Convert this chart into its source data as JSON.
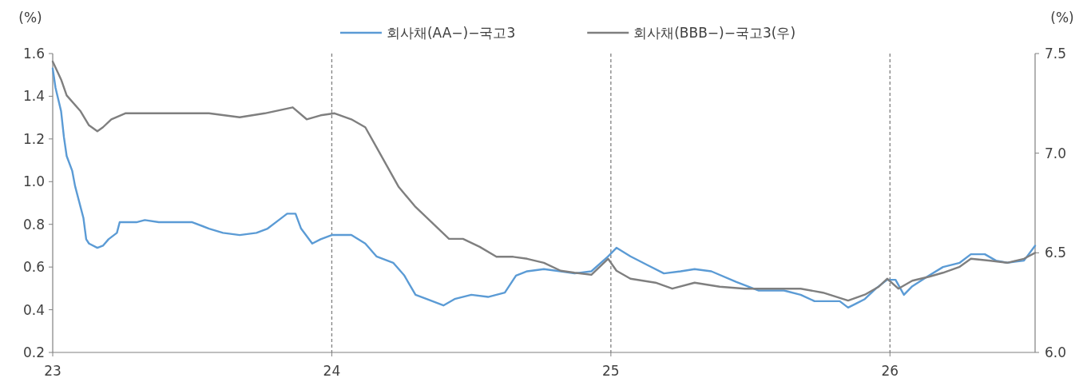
{
  "chart_data": {
    "type": "line",
    "ylabel": "(%)",
    "y2label": "(%)",
    "xlim": [
      2023,
      2026.52
    ],
    "xticks": [
      {
        "value": 2023,
        "label": "23"
      },
      {
        "value": 2024,
        "label": "24"
      },
      {
        "value": 2025,
        "label": "25"
      },
      {
        "value": 2026,
        "label": "26"
      }
    ],
    "ylim": [
      0.2,
      1.6
    ],
    "yticks": [
      {
        "value": 0.2,
        "label": "0.2"
      },
      {
        "value": 0.4,
        "label": "0.4"
      },
      {
        "value": 0.6,
        "label": "0.6"
      },
      {
        "value": 0.8,
        "label": "0.8"
      },
      {
        "value": 1.0,
        "label": "1.0"
      },
      {
        "value": 1.2,
        "label": "1.2"
      },
      {
        "value": 1.4,
        "label": "1.4"
      },
      {
        "value": 1.6,
        "label": "1.6"
      }
    ],
    "y2lim": [
      6.0,
      7.5
    ],
    "y2ticks": [
      {
        "value": 6.0,
        "label": "6.0"
      },
      {
        "value": 6.5,
        "label": "6.5"
      },
      {
        "value": 7.0,
        "label": "7.0"
      },
      {
        "value": 7.5,
        "label": "7.5"
      }
    ],
    "grid": false,
    "legend": "top",
    "marker": "none",
    "line_style": "solid",
    "ref_lines": [
      {
        "axis": "x",
        "value": 2024,
        "color": "#808080",
        "line_style": "dashed"
      },
      {
        "axis": "x",
        "value": 2025,
        "color": "#808080",
        "line_style": "dashed"
      },
      {
        "axis": "x",
        "value": 2026,
        "color": "#808080",
        "line_style": "dashed"
      }
    ],
    "series": [
      {
        "name": "회사채(AA−)−국고3",
        "color": "#5b9bd5",
        "x": [
          2023.0,
          2023.01,
          2023.03,
          2023.04,
          2023.05,
          2023.07,
          2023.08,
          2023.1,
          2023.11,
          2023.12,
          2023.13,
          2023.16,
          2023.18,
          2023.2,
          2023.23,
          2023.24,
          2023.3,
          2023.33,
          2023.38,
          2023.44,
          2023.5,
          2023.56,
          2023.61,
          2023.67,
          2023.73,
          2023.77,
          2023.81,
          2023.84,
          2023.87,
          2023.89,
          2023.93,
          2023.96,
          2024.0,
          2024.07,
          2024.12,
          2024.16,
          2024.22,
          2024.26,
          2024.3,
          2024.34,
          2024.4,
          2024.44,
          2024.5,
          2024.56,
          2024.62,
          2024.66,
          2024.7,
          2024.76,
          2024.82,
          2024.87,
          2024.93,
          2024.99,
          2025.02,
          2025.07,
          2025.13,
          2025.19,
          2025.25,
          2025.3,
          2025.36,
          2025.45,
          2025.53,
          2025.62,
          2025.68,
          2025.73,
          2025.82,
          2025.85,
          2025.88,
          2025.91,
          2025.95,
          2025.99,
          2026.02,
          2026.05,
          2026.08,
          2026.14,
          2026.19,
          2026.25,
          2026.29,
          2026.34,
          2026.38,
          2026.42,
          2026.48,
          2026.52
        ],
        "values": [
          1.53,
          1.44,
          1.33,
          1.21,
          1.12,
          1.05,
          0.98,
          0.88,
          0.83,
          0.73,
          0.71,
          0.69,
          0.7,
          0.73,
          0.76,
          0.81,
          0.81,
          0.82,
          0.81,
          0.81,
          0.81,
          0.78,
          0.76,
          0.75,
          0.76,
          0.78,
          0.82,
          0.85,
          0.85,
          0.78,
          0.71,
          0.73,
          0.75,
          0.75,
          0.71,
          0.65,
          0.62,
          0.56,
          0.47,
          0.45,
          0.42,
          0.45,
          0.47,
          0.46,
          0.48,
          0.56,
          0.58,
          0.59,
          0.58,
          0.57,
          0.58,
          0.65,
          0.69,
          0.65,
          0.61,
          0.57,
          0.58,
          0.59,
          0.58,
          0.53,
          0.49,
          0.49,
          0.47,
          0.44,
          0.44,
          0.41,
          0.43,
          0.45,
          0.5,
          0.54,
          0.54,
          0.47,
          0.51,
          0.56,
          0.6,
          0.62,
          0.66,
          0.66,
          0.63,
          0.62,
          0.63,
          0.7
        ]
      },
      {
        "name": "회사채(BBB−)−국고3(우)",
        "color": "#7f7f7f",
        "axis": "y2",
        "x": [
          2023.0,
          2023.03,
          2023.05,
          2023.1,
          2023.13,
          2023.16,
          2023.18,
          2023.21,
          2023.26,
          2023.33,
          2023.44,
          2023.56,
          2023.67,
          2023.76,
          2023.86,
          2023.91,
          2023.96,
          2024.01,
          2024.07,
          2024.12,
          2024.16,
          2024.2,
          2024.24,
          2024.3,
          2024.36,
          2024.42,
          2024.47,
          2024.53,
          2024.59,
          2024.65,
          2024.7,
          2024.76,
          2024.82,
          2024.87,
          2024.93,
          2024.99,
          2025.02,
          2025.07,
          2025.16,
          2025.22,
          2025.3,
          2025.39,
          2025.48,
          2025.56,
          2025.68,
          2025.76,
          2025.85,
          2025.91,
          2025.96,
          2025.99,
          2026.03,
          2026.08,
          2026.14,
          2026.19,
          2026.25,
          2026.29,
          2026.36,
          2026.42,
          2026.48,
          2026.52
        ],
        "values": [
          7.46,
          7.37,
          7.29,
          7.21,
          7.14,
          7.11,
          7.13,
          7.17,
          7.2,
          7.2,
          7.2,
          7.2,
          7.18,
          7.2,
          7.23,
          7.17,
          7.19,
          7.2,
          7.17,
          7.13,
          7.03,
          6.93,
          6.83,
          6.73,
          6.65,
          6.57,
          6.57,
          6.53,
          6.48,
          6.48,
          6.47,
          6.45,
          6.41,
          6.4,
          6.39,
          6.47,
          6.41,
          6.37,
          6.35,
          6.32,
          6.35,
          6.33,
          6.32,
          6.32,
          6.32,
          6.3,
          6.26,
          6.29,
          6.33,
          6.37,
          6.32,
          6.36,
          6.38,
          6.4,
          6.43,
          6.47,
          6.46,
          6.45,
          6.47,
          6.5
        ]
      }
    ]
  }
}
